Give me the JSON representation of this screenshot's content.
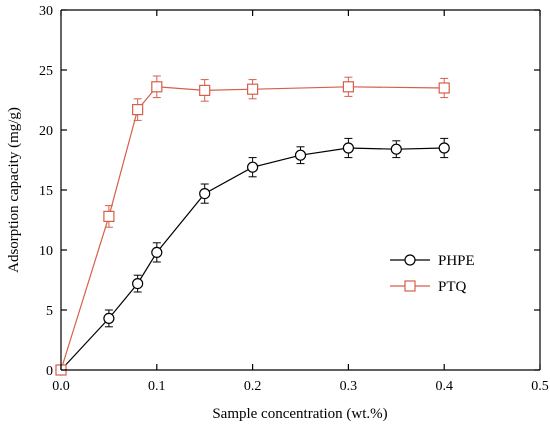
{
  "chart_data": {
    "type": "line",
    "title": "",
    "xlabel": "Sample concentration (wt.%)",
    "ylabel": "Adsorption capacity (mg/g)",
    "xlim": [
      0.0,
      0.5
    ],
    "ylim": [
      0,
      30
    ],
    "xticks": [
      "0.0",
      "0.1",
      "0.2",
      "0.3",
      "0.4",
      "0.5"
    ],
    "yticks": [
      "0",
      "5",
      "10",
      "15",
      "20",
      "25",
      "30"
    ],
    "grid": false,
    "legend_position": "right",
    "series": [
      {
        "name": "PHPE",
        "color": "#000000",
        "marker": "circle",
        "x": [
          0.0,
          0.05,
          0.08,
          0.1,
          0.15,
          0.2,
          0.25,
          0.3,
          0.35,
          0.4
        ],
        "y": [
          0.0,
          4.3,
          7.2,
          9.8,
          14.7,
          16.9,
          17.9,
          18.5,
          18.4,
          18.5
        ],
        "error": [
          0.0,
          0.7,
          0.7,
          0.8,
          0.8,
          0.8,
          0.7,
          0.8,
          0.7,
          0.8
        ]
      },
      {
        "name": "PTQ",
        "color": "#d65f4a",
        "marker": "square",
        "x": [
          0.0,
          0.05,
          0.08,
          0.1,
          0.15,
          0.2,
          0.3,
          0.4
        ],
        "y": [
          0.0,
          12.8,
          21.7,
          23.6,
          23.3,
          23.4,
          23.6,
          23.5
        ],
        "error": [
          0.0,
          0.9,
          0.9,
          0.9,
          0.9,
          0.8,
          0.8,
          0.8
        ]
      }
    ]
  }
}
